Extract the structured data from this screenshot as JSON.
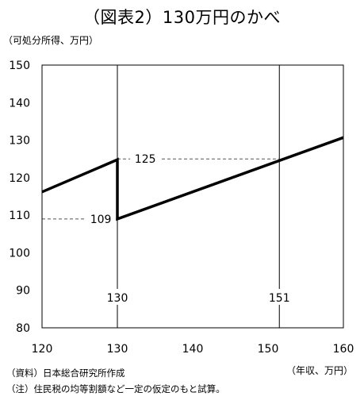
{
  "title": "（図表2）130万円のかべ",
  "y_unit_label": "（可処分所得、万円）",
  "x_unit_label": "（年収、万円）",
  "notes": [
    "（資料）日本総合研究所作成",
    "（注）住民税の均等割額など一定の仮定のもと試算。"
  ],
  "chart_data": {
    "type": "line",
    "xlim": [
      120,
      160
    ],
    "ylim": [
      80,
      150
    ],
    "x_ticks": [
      120,
      130,
      140,
      150,
      160
    ],
    "y_ticks": [
      80,
      90,
      100,
      110,
      120,
      130,
      140,
      150
    ],
    "grid": false,
    "series": [
      {
        "points": [
          [
            120,
            116.2
          ],
          [
            130,
            124.8
          ],
          [
            130,
            109.0
          ],
          [
            160,
            130.7
          ]
        ],
        "color": "#000000"
      }
    ],
    "vertical_markers": [
      {
        "x": 130,
        "label": "130"
      },
      {
        "x": 151.5,
        "label": "151"
      }
    ],
    "reference_lines": [
      {
        "y": 109,
        "x_from": 120,
        "x_to": 130,
        "label": "109",
        "label_x": 127.8
      },
      {
        "y": 125,
        "x_from": 130,
        "x_to": 151.5,
        "label": "125",
        "label_x": 133.7
      }
    ]
  }
}
